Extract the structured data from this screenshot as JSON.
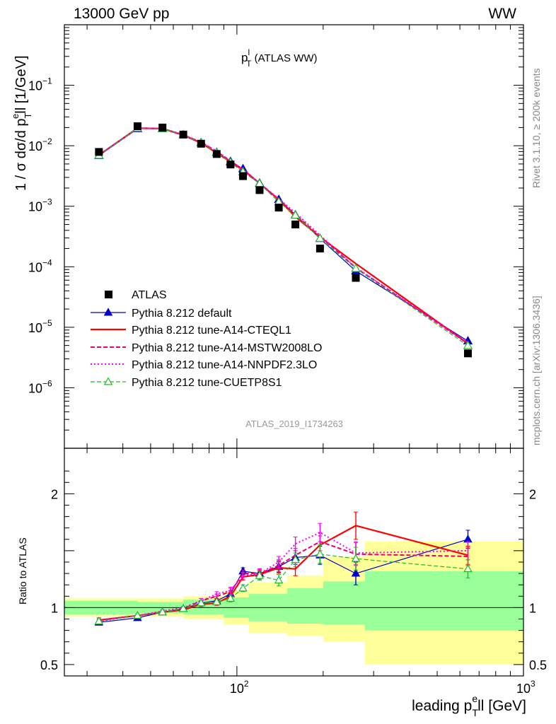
{
  "header": {
    "energy_label": "13000 GeV pp",
    "process_label": "WW"
  },
  "side": {
    "rivet_label": "Rivet 3.1.10, ≥ 200k events",
    "mcplots_label": "mcplots.cern.ch [arXiv:1306.3436]"
  },
  "main_title": {
    "base": "p",
    "sup": "l",
    "sub": "T",
    "suffix": " (ATLAS WW)"
  },
  "analysis_label": "ATLAS_2019_I1734263",
  "y_label": {
    "a": "1 / σ  dσ/d p",
    "sub": "T",
    "sup": "e",
    "b": "ll [1/GeV]"
  },
  "x_label": {
    "a": "leading p",
    "sub": "T",
    "sup": "e",
    "b": "ll [GeV]"
  },
  "ratio_label": "Ratio to ATLAS",
  "chart_data": {
    "type": "line",
    "x_scale": "log",
    "xlim": [
      25,
      1000
    ],
    "x_ticks": [
      {
        "base": "10",
        "exp": "2",
        "value": 100
      },
      {
        "base": "10",
        "exp": "3",
        "value": 1000
      }
    ],
    "main": {
      "y_scale": "log",
      "ylim": [
        1e-07,
        1
      ],
      "y_ticks": [
        {
          "base": "10",
          "exp": "−1",
          "value": 0.1
        },
        {
          "base": "10",
          "exp": "−2",
          "value": 0.01
        },
        {
          "base": "10",
          "exp": "−3",
          "value": 0.001
        },
        {
          "base": "10",
          "exp": "−4",
          "value": 0.0001
        },
        {
          "base": "10",
          "exp": "−5",
          "value": 1e-05
        },
        {
          "base": "10",
          "exp": "−6",
          "value": 1e-06
        }
      ]
    },
    "ratio": {
      "ylim": [
        0.4,
        2.4
      ],
      "y_ticks": [
        {
          "label": "0.5",
          "value": 0.5
        },
        {
          "label": "1",
          "value": 1
        },
        {
          "label": "2",
          "value": 2
        }
      ],
      "green_band": [
        [
          25,
          0.94,
          1.06
        ],
        [
          45,
          0.95,
          1.05
        ],
        [
          65,
          0.94,
          1.07
        ],
        [
          90,
          0.91,
          1.09
        ],
        [
          110,
          0.88,
          1.12
        ],
        [
          150,
          0.86,
          1.17
        ],
        [
          200,
          0.85,
          1.23
        ],
        [
          280,
          0.8,
          1.32
        ],
        [
          1000,
          0.8,
          1.32
        ]
      ],
      "yellow_band": [
        [
          25,
          0.92,
          1.08
        ],
        [
          45,
          0.92,
          1.08
        ],
        [
          65,
          0.9,
          1.1
        ],
        [
          90,
          0.85,
          1.15
        ],
        [
          110,
          0.78,
          1.22
        ],
        [
          150,
          0.75,
          1.28
        ],
        [
          200,
          0.7,
          1.45
        ],
        [
          280,
          0.5,
          1.58
        ],
        [
          1000,
          0.5,
          1.58
        ]
      ]
    },
    "bins_x": [
      33,
      45,
      55,
      65,
      75,
      85,
      95,
      105,
      120,
      140,
      160,
      195,
      260,
      640
    ],
    "atlas": {
      "name": "ATLAS",
      "values": [
        0.0079,
        0.021,
        0.02,
        0.0153,
        0.0108,
        0.0073,
        0.0049,
        0.00315,
        0.00185,
        0.00095,
        0.0005,
        0.0002,
        6.55e-05,
        3.7e-06
      ]
    },
    "series": [
      {
        "name": "Pythia 8.212 default",
        "color": "#0000cc",
        "style": "solid",
        "marker": "triangle-filled",
        "width": 1.2,
        "ratios": [
          0.87,
          0.91,
          0.96,
          0.99,
          1.04,
          1.06,
          1.12,
          1.32,
          1.3,
          1.36,
          1.44,
          1.46,
          1.3,
          1.6
        ],
        "errors": [
          0.02,
          0.01,
          0.01,
          0.01,
          0.02,
          0.02,
          0.03,
          0.03,
          0.04,
          0.05,
          0.06,
          0.08,
          0.1,
          0.08
        ]
      },
      {
        "name": "Pythia 8.212 tune-A14-CTEQL1",
        "color": "#ff0000",
        "style": "solid",
        "marker": "none",
        "width": 2.2,
        "ratios": [
          0.89,
          0.93,
          0.96,
          0.98,
          1.03,
          1.04,
          1.1,
          1.27,
          1.29,
          1.35,
          1.34,
          1.55,
          1.72,
          1.46
        ],
        "errors": [
          0.02,
          0.01,
          0.01,
          0.01,
          0.02,
          0.02,
          0.03,
          0.03,
          0.04,
          0.05,
          0.06,
          0.08,
          0.12,
          0.08
        ]
      },
      {
        "name": "Pythia 8.212 tune-A14-MSTW2008LO",
        "color": "#ee0066",
        "style": "dashed",
        "marker": "none",
        "width": 2,
        "ratios": [
          0.89,
          0.93,
          0.96,
          0.99,
          1.06,
          1.1,
          1.14,
          1.3,
          1.3,
          1.37,
          1.46,
          1.58,
          1.47,
          1.45
        ],
        "errors": [
          0.02,
          0.01,
          0.01,
          0.01,
          0.02,
          0.02,
          0.03,
          0.03,
          0.04,
          0.05,
          0.06,
          0.08,
          0.1,
          0.08
        ]
      },
      {
        "name": "Pythia 8.212 tune-A14-NNPDF2.3LO",
        "color": "#ff00ff",
        "style": "dotted",
        "marker": "none",
        "width": 2,
        "ratios": [
          0.88,
          0.93,
          0.97,
          1.0,
          1.06,
          1.12,
          1.15,
          1.28,
          1.3,
          1.4,
          1.56,
          1.66,
          1.48,
          1.5
        ],
        "errors": [
          0.02,
          0.01,
          0.01,
          0.01,
          0.02,
          0.02,
          0.03,
          0.03,
          0.04,
          0.05,
          0.06,
          0.08,
          0.1,
          0.08
        ]
      },
      {
        "name": "Pythia 8.212 tune-CUETP8S1",
        "color": "#22bb22",
        "style": "dashed",
        "marker": "triangle-open",
        "width": 1.2,
        "ratios": [
          0.88,
          0.93,
          0.96,
          0.99,
          1.04,
          1.05,
          1.08,
          1.17,
          1.28,
          1.24,
          1.42,
          1.47,
          1.43,
          1.34
        ],
        "errors": [
          0.02,
          0.01,
          0.01,
          0.01,
          0.02,
          0.02,
          0.03,
          0.03,
          0.04,
          0.05,
          0.06,
          0.08,
          0.1,
          0.08
        ]
      }
    ]
  }
}
